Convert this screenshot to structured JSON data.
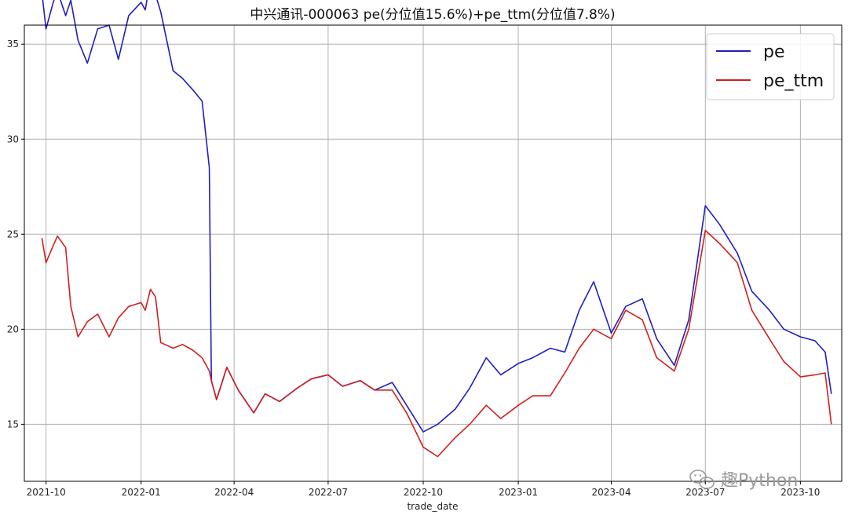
{
  "chart_data": {
    "type": "line",
    "title": "中兴通讯-000063 pe(分位值15.6%)+pe_ttm(分位值7.8%)",
    "xlabel": "trade_date",
    "ylabel": "",
    "xlim": [
      "2021-09-10",
      "2023-11-10"
    ],
    "ylim": [
      12.0,
      36.0
    ],
    "grid": true,
    "legend_position": "top-right",
    "x_ticks": [
      "2021-10",
      "2022-01",
      "2022-04",
      "2022-07",
      "2022-10",
      "2023-01",
      "2023-04",
      "2023-07",
      "2023-10"
    ],
    "y_ticks": [
      15,
      20,
      25,
      30,
      35
    ],
    "x": [
      "2021-09-27",
      "2021-10-01",
      "2021-10-08",
      "2021-10-12",
      "2021-10-20",
      "2021-10-25",
      "2021-11-01",
      "2021-11-10",
      "2021-11-20",
      "2021-12-01",
      "2021-12-10",
      "2021-12-20",
      "2022-01-01",
      "2022-01-05",
      "2022-01-10",
      "2022-01-15",
      "2022-01-20",
      "2022-02-01",
      "2022-02-10",
      "2022-02-20",
      "2022-03-01",
      "2022-03-08",
      "2022-03-10",
      "2022-03-15",
      "2022-03-25",
      "2022-04-05",
      "2022-04-20",
      "2022-05-01",
      "2022-05-15",
      "2022-06-01",
      "2022-06-15",
      "2022-07-01",
      "2022-07-15",
      "2022-08-01",
      "2022-08-15",
      "2022-09-01",
      "2022-09-15",
      "2022-10-01",
      "2022-10-15",
      "2022-11-01",
      "2022-11-15",
      "2022-12-01",
      "2022-12-15",
      "2023-01-01",
      "2023-01-15",
      "2023-02-01",
      "2023-02-15",
      "2023-03-01",
      "2023-03-15",
      "2023-04-01",
      "2023-04-15",
      "2023-05-01",
      "2023-05-15",
      "2023-06-01",
      "2023-06-15",
      "2023-07-01",
      "2023-07-15",
      "2023-08-01",
      "2023-08-15",
      "2023-09-01",
      "2023-09-15",
      "2023-10-01",
      "2023-10-15",
      "2023-10-25",
      "2023-10-31"
    ],
    "series": [
      {
        "name": "pe",
        "color": "#1f1fbf",
        "values": [
          37.7,
          35.8,
          37.2,
          37.8,
          36.5,
          37.3,
          35.2,
          34.0,
          35.8,
          36.0,
          34.2,
          36.5,
          37.2,
          36.8,
          38.4,
          37.6,
          36.7,
          33.6,
          33.2,
          32.6,
          32.0,
          28.5,
          17.3,
          16.3,
          18.0,
          16.8,
          15.6,
          16.6,
          16.2,
          16.9,
          17.4,
          17.6,
          17.0,
          17.3,
          16.8,
          17.2,
          16.0,
          14.6,
          15.0,
          15.8,
          16.9,
          18.5,
          17.6,
          18.2,
          18.5,
          19.0,
          18.8,
          21.0,
          22.5,
          19.8,
          21.2,
          21.6,
          19.5,
          18.1,
          20.5,
          26.5,
          25.5,
          24.0,
          22.0,
          21.0,
          20.0,
          19.6,
          19.4,
          18.8,
          16.6
        ]
      },
      {
        "name": "pe_ttm",
        "color": "#d11f1f",
        "values": [
          24.8,
          23.5,
          24.4,
          24.9,
          24.3,
          21.2,
          19.6,
          20.4,
          20.8,
          19.6,
          20.6,
          21.2,
          21.4,
          21.0,
          22.1,
          21.7,
          19.3,
          19.0,
          19.2,
          18.9,
          18.5,
          17.8,
          17.3,
          16.3,
          18.0,
          16.8,
          15.6,
          16.6,
          16.2,
          16.9,
          17.4,
          17.6,
          17.0,
          17.3,
          16.8,
          16.8,
          15.6,
          13.8,
          13.3,
          14.3,
          15.0,
          16.0,
          15.3,
          16.0,
          16.5,
          16.5,
          17.7,
          19.0,
          20.0,
          19.5,
          21.0,
          20.5,
          18.5,
          17.8,
          20.0,
          25.2,
          24.5,
          23.5,
          21.0,
          19.5,
          18.3,
          17.5,
          17.6,
          17.7,
          15.0
        ]
      }
    ]
  },
  "watermark": {
    "icon": "wechat-icon",
    "text": "趣Python"
  }
}
